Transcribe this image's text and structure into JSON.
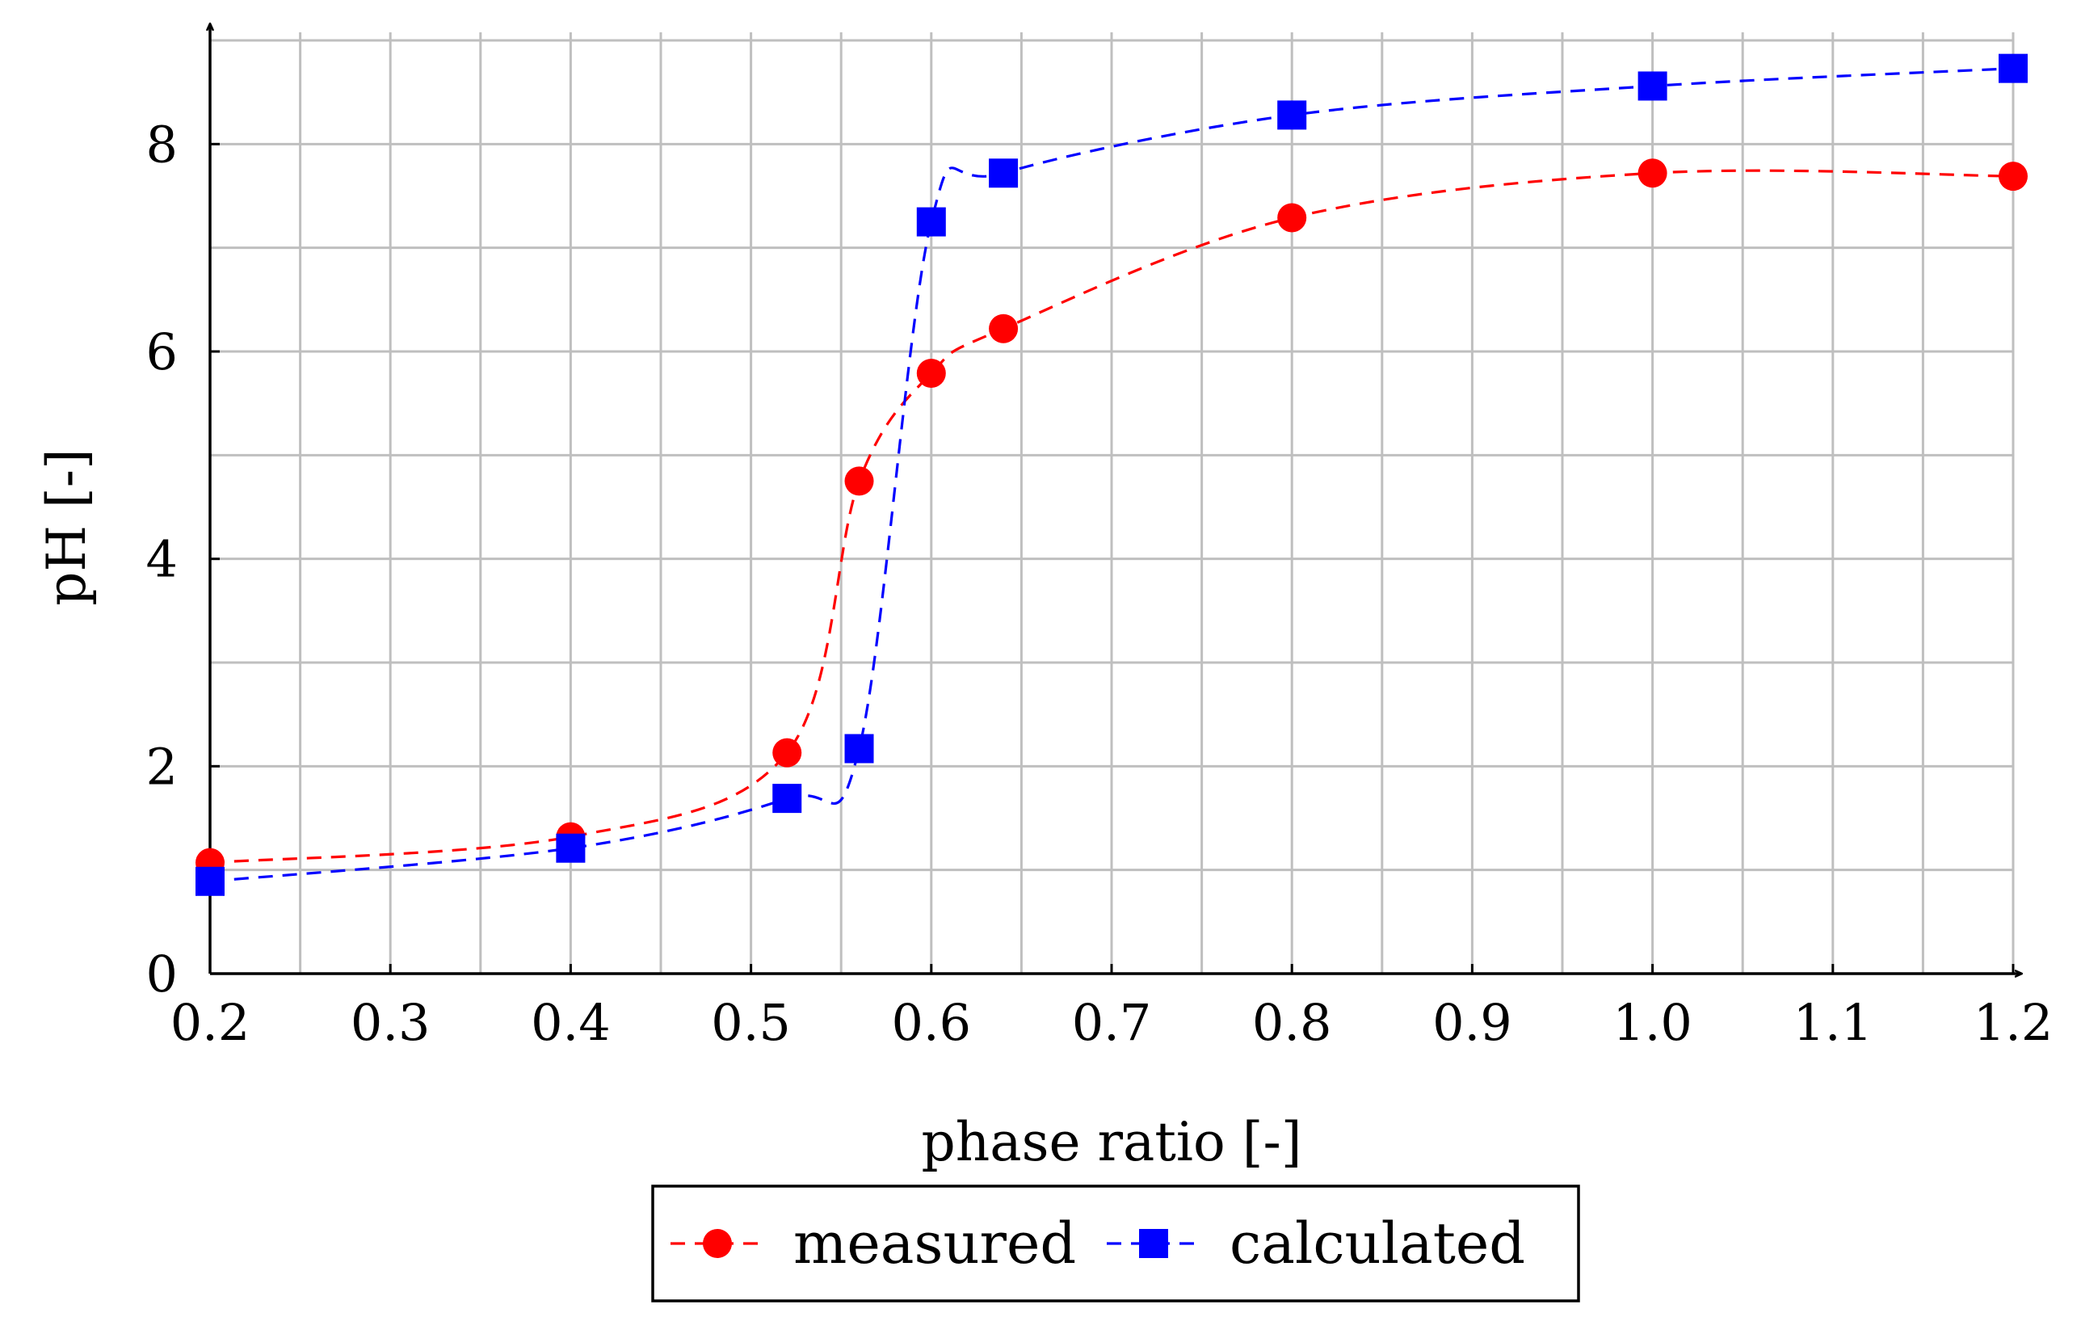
{
  "chart_data": {
    "type": "line",
    "title": "",
    "xlabel": "phase ratio [-]",
    "ylabel": "pH [-]",
    "xlim": [
      0.2,
      1.2
    ],
    "ylim": [
      0,
      9
    ],
    "x_ticks": [
      0.2,
      0.3,
      0.4,
      0.5,
      0.6,
      0.7,
      0.8,
      0.9,
      1.0,
      1.1,
      1.2
    ],
    "x_tick_labels": [
      "0.2",
      "0.3",
      "0.4",
      "0.5",
      "0.6",
      "0.7",
      "0.8",
      "0.9",
      "1.0",
      "1.1",
      "1.2"
    ],
    "y_ticks": [
      0,
      2,
      4,
      6,
      8
    ],
    "y_tick_labels": [
      "0",
      "2",
      "4",
      "6",
      "8"
    ],
    "x_grid_step": 0.05,
    "y_grid_step": 1,
    "grid": true,
    "legend_position": "bottom-center",
    "series": [
      {
        "name": "measured",
        "color": "#ff0000",
        "marker": "circle",
        "line_style": "dashed",
        "x": [
          0.2,
          0.4,
          0.52,
          0.56,
          0.6,
          0.64,
          0.8,
          1.0,
          1.2
        ],
        "values": [
          1.07,
          1.32,
          2.13,
          4.75,
          5.79,
          6.22,
          7.29,
          7.72,
          7.69
        ]
      },
      {
        "name": "calculated",
        "color": "#0000ff",
        "marker": "square",
        "line_style": "dashed",
        "x": [
          0.2,
          0.4,
          0.52,
          0.56,
          0.6,
          0.64,
          0.8,
          1.0,
          1.2
        ],
        "values": [
          0.89,
          1.21,
          1.69,
          2.17,
          7.25,
          7.72,
          8.28,
          8.56,
          8.73
        ]
      }
    ]
  }
}
